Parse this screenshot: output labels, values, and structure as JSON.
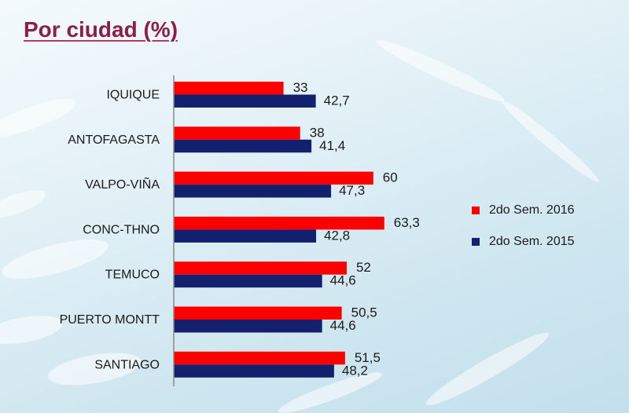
{
  "title": "Por ciudad (%)",
  "colors": {
    "title": "#8c1f45",
    "s2016": "#ff0000",
    "s2015": "#12206e",
    "axis": "#8a8a8a"
  },
  "chart_data": {
    "type": "bar",
    "orientation": "horizontal",
    "categories": [
      "IQUIQUE",
      "ANTOFAGASTA",
      "VALPO-VIÑA",
      "CONC-THNO",
      "TEMUCO",
      "PUERTO MONTT",
      "SANTIAGO"
    ],
    "series": [
      {
        "name": "2do Sem. 2016",
        "color": "#ff0000",
        "values": [
          33,
          38,
          60,
          63.3,
          52,
          50.5,
          51.5
        ],
        "labels": [
          "33",
          "38",
          "60",
          "63,3",
          "52",
          "50,5",
          "51,5"
        ]
      },
      {
        "name": "2do Sem. 2015",
        "color": "#12206e",
        "values": [
          42.7,
          41.4,
          47.3,
          42.8,
          44.6,
          44.6,
          48.2
        ],
        "labels": [
          "42,7",
          "41,4",
          "47,3",
          "42,8",
          "44,6",
          "44,6",
          "48,2"
        ]
      }
    ],
    "xlim": [
      0,
      100
    ],
    "grid": false,
    "legend_position": "right",
    "title": "Por ciudad (%)"
  }
}
